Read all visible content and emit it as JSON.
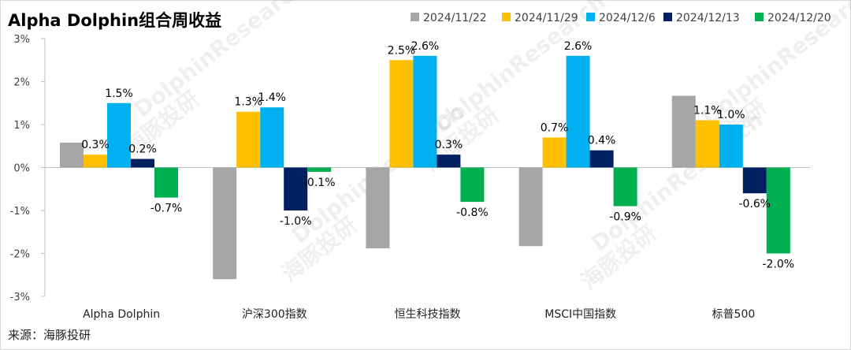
{
  "chart_data": {
    "type": "bar",
    "title": "Alpha Dolphin组合周收益",
    "categories": [
      "Alpha Dolphin",
      "沪深300指数",
      "恒生科技指数",
      "MSCI中国指数",
      "标普500"
    ],
    "series": [
      {
        "name": "2024/11/22",
        "color": "#A6A6A6",
        "values": [
          0.58,
          -2.6,
          -1.88,
          -1.83,
          1.67
        ]
      },
      {
        "name": "2024/11/29",
        "color": "#FFC000",
        "values": [
          0.3,
          1.3,
          2.5,
          0.7,
          1.1
        ]
      },
      {
        "name": "2024/12/6",
        "color": "#00B0F0",
        "values": [
          1.5,
          1.4,
          2.6,
          2.6,
          1.0
        ]
      },
      {
        "name": "2024/12/13",
        "color": "#002060",
        "values": [
          0.2,
          -1.0,
          0.3,
          0.4,
          -0.6
        ]
      },
      {
        "name": "2024/12/20",
        "color": "#00B050",
        "values": [
          -0.7,
          -0.1,
          -0.8,
          -0.9,
          -2.0
        ]
      }
    ],
    "data_labels": [
      [
        null,
        "0.3%",
        "1.5%",
        "0.2%",
        "-0.7%"
      ],
      [
        null,
        "1.3%",
        "1.4%",
        "-1.0%",
        "-0.1%"
      ],
      [
        null,
        "2.5%",
        "2.6%",
        "0.3%",
        "-0.8%"
      ],
      [
        null,
        "0.7%",
        "2.6%",
        "0.4%",
        "-0.9%"
      ],
      [
        null,
        "1.1%",
        "1.0%",
        "-0.6%",
        "-2.0%"
      ]
    ],
    "y_ticks": [
      "3%",
      "2%",
      "1%",
      "0%",
      "-1%",
      "-2%",
      "-3%"
    ],
    "y_tick_values": [
      3,
      2,
      1,
      0,
      -1,
      -2,
      -3
    ],
    "ylim": [
      -3,
      3
    ],
    "legend_position": "top-right",
    "grid": false
  },
  "source": "来源：海豚投研",
  "watermark": {
    "text_cn": "海豚投研",
    "text_en": "DolphinResearch"
  }
}
